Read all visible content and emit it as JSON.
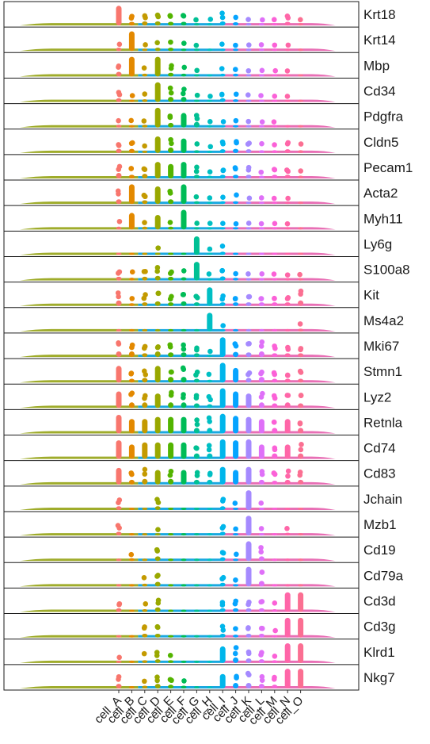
{
  "chart_data": {
    "type": "ridgeline-strip",
    "genes": [
      "Krt18",
      "Krt14",
      "Mbp",
      "Cd34",
      "Pdgfra",
      "Cldn5",
      "Pecam1",
      "Acta2",
      "Myh11",
      "Ly6g",
      "S100a8",
      "Kit",
      "Ms4a2",
      "Mki67",
      "Stmn1",
      "Lyz2",
      "Retnla",
      "Cd74",
      "Cd83",
      "Jchain",
      "Mzb1",
      "Cd19",
      "Cd79a",
      "Cd3d",
      "Cd3g",
      "Klrd1",
      "Nkg7"
    ],
    "clusters": [
      "cell_A",
      "cell_B",
      "cell_C",
      "cell_D",
      "cell_E",
      "cell_F",
      "cell_G",
      "cell_H",
      "cell_I",
      "cell_J",
      "cell_K",
      "cell_L",
      "cell_M",
      "cell_N",
      "cell_O"
    ],
    "cluster_colors": [
      "#F8766D",
      "#E38900",
      "#C49A00",
      "#99A800",
      "#53B400",
      "#00BC56",
      "#00C094",
      "#00BFC4",
      "#00B6EB",
      "#06A4FF",
      "#A58AFF",
      "#DF70F8",
      "#FB61D7",
      "#FF66A8",
      "#FB6F92"
    ],
    "band_colors": {
      "left": "#9aa820",
      "middle": "#1aa8e0",
      "right": "#e86fb5"
    },
    "level_scale": [
      0,
      1
    ],
    "expression_levels": [
      [
        0.95,
        0.4,
        0.45,
        0.45,
        0.4,
        0.4,
        0.15,
        0.15,
        0.45,
        0.35,
        0.15,
        0.15,
        0.15,
        0.4,
        0.15
      ],
      [
        0.35,
        0.95,
        0.25,
        0.35,
        0.35,
        0.25,
        0.15,
        0.1,
        0.25,
        0.25,
        0.15,
        0.15,
        0.15,
        0.15,
        0.1
      ],
      [
        0.5,
        0.95,
        0.3,
        0.95,
        0.4,
        0.3,
        0.15,
        0.1,
        0.3,
        0.3,
        0.15,
        0.15,
        0.15,
        0.2,
        0.1
      ],
      [
        0.4,
        0.2,
        0.3,
        0.95,
        0.55,
        0.55,
        0.2,
        0.15,
        0.4,
        0.3,
        0.2,
        0.2,
        0.15,
        0.2,
        0.1
      ],
      [
        0.3,
        0.2,
        0.3,
        0.95,
        0.5,
        0.7,
        0.6,
        0.15,
        0.15,
        0.2,
        0.2,
        0.15,
        0.15,
        0.1,
        0.1
      ],
      [
        0.45,
        0.45,
        0.25,
        0.8,
        0.6,
        0.7,
        0.3,
        0.2,
        0.4,
        0.45,
        0.4,
        0.3,
        0.3,
        0.4,
        0.3
      ],
      [
        0.6,
        0.4,
        0.5,
        0.8,
        0.7,
        0.8,
        0.4,
        0.3,
        0.4,
        0.4,
        0.4,
        0.3,
        0.4,
        0.4,
        0.3
      ],
      [
        0.5,
        0.95,
        0.4,
        0.85,
        0.5,
        0.95,
        0.3,
        0.15,
        0.3,
        0.3,
        0.15,
        0.15,
        0.15,
        0.15,
        0.1
      ],
      [
        0.3,
        0.8,
        0.3,
        0.7,
        0.3,
        0.95,
        0.15,
        0.15,
        0.2,
        0.15,
        0.15,
        0.15,
        0.15,
        0.15,
        0.1
      ],
      [
        0.1,
        0.1,
        0.1,
        0.2,
        0.1,
        0.1,
        0.9,
        0.15,
        0.35,
        0.1,
        0.1,
        0.1,
        0.1,
        0.1,
        0.1
      ],
      [
        0.4,
        0.3,
        0.4,
        0.5,
        0.4,
        0.35,
        0.9,
        0.2,
        0.45,
        0.3,
        0.2,
        0.2,
        0.2,
        0.2,
        0.15
      ],
      [
        0.6,
        0.3,
        0.4,
        0.5,
        0.4,
        0.5,
        0.4,
        0.9,
        0.4,
        0.4,
        0.4,
        0.4,
        0.4,
        0.4,
        0.6
      ],
      [
        0.1,
        0.1,
        0.1,
        0.1,
        0.1,
        0.1,
        0.1,
        0.9,
        0.15,
        0.1,
        0.1,
        0.1,
        0.1,
        0.1,
        0.3
      ],
      [
        0.6,
        0.6,
        0.4,
        0.6,
        0.5,
        0.5,
        0.4,
        0.15,
        0.95,
        0.55,
        0.5,
        0.6,
        0.4,
        0.4,
        0.4
      ],
      [
        0.8,
        0.4,
        0.5,
        0.8,
        0.6,
        0.6,
        0.4,
        0.3,
        0.95,
        0.7,
        0.5,
        0.6,
        0.4,
        0.4,
        0.4
      ],
      [
        0.8,
        0.6,
        0.6,
        0.7,
        0.6,
        0.6,
        0.5,
        0.4,
        0.95,
        0.8,
        0.7,
        0.6,
        0.5,
        0.6,
        0.5
      ],
      [
        0.9,
        0.7,
        0.7,
        0.8,
        0.8,
        0.8,
        0.6,
        0.6,
        0.95,
        0.85,
        0.8,
        0.7,
        0.6,
        0.7,
        0.6
      ],
      [
        0.9,
        0.7,
        0.8,
        0.8,
        0.8,
        0.8,
        0.6,
        0.6,
        0.95,
        0.9,
        0.95,
        0.7,
        0.6,
        0.7,
        0.6
      ],
      [
        0.8,
        0.5,
        0.6,
        0.7,
        0.6,
        0.7,
        0.5,
        0.5,
        0.85,
        0.7,
        0.85,
        0.5,
        0.4,
        0.5,
        0.5
      ],
      [
        0.4,
        0.1,
        0.1,
        0.4,
        0.1,
        0.1,
        0.1,
        0.1,
        0.4,
        0.2,
        0.95,
        0.2,
        0.1,
        0.1,
        0.1
      ],
      [
        0.4,
        0.1,
        0.1,
        0.2,
        0.1,
        0.1,
        0.1,
        0.1,
        0.4,
        0.2,
        0.95,
        0.2,
        0.1,
        0.3,
        0.1
      ],
      [
        0.1,
        0.3,
        0.1,
        0.5,
        0.1,
        0.1,
        0.1,
        0.1,
        0.4,
        0.2,
        0.95,
        0.5,
        0.1,
        0.1,
        0.1
      ],
      [
        0.1,
        0.1,
        0.3,
        0.5,
        0.1,
        0.1,
        0.1,
        0.1,
        0.4,
        0.2,
        0.95,
        0.6,
        0.1,
        0.1,
        0.1
      ],
      [
        0.4,
        0.1,
        0.3,
        0.5,
        0.1,
        0.1,
        0.1,
        0.1,
        0.4,
        0.4,
        0.4,
        0.4,
        0.3,
        0.95,
        0.95
      ],
      [
        0.1,
        0.1,
        0.4,
        0.4,
        0.1,
        0.1,
        0.1,
        0.1,
        0.4,
        0.3,
        0.4,
        0.4,
        0.2,
        0.95,
        0.95
      ],
      [
        0.2,
        0.1,
        0.3,
        0.4,
        0.3,
        0.1,
        0.1,
        0.1,
        0.8,
        0.6,
        0.5,
        0.4,
        0.3,
        0.95,
        0.95
      ],
      [
        0.5,
        0.1,
        0.3,
        0.5,
        0.4,
        0.3,
        0.1,
        0.1,
        0.7,
        0.6,
        0.6,
        0.5,
        0.4,
        0.95,
        0.95
      ]
    ],
    "title": "",
    "xlabel": "",
    "ylabel": "",
    "legend": "none"
  }
}
